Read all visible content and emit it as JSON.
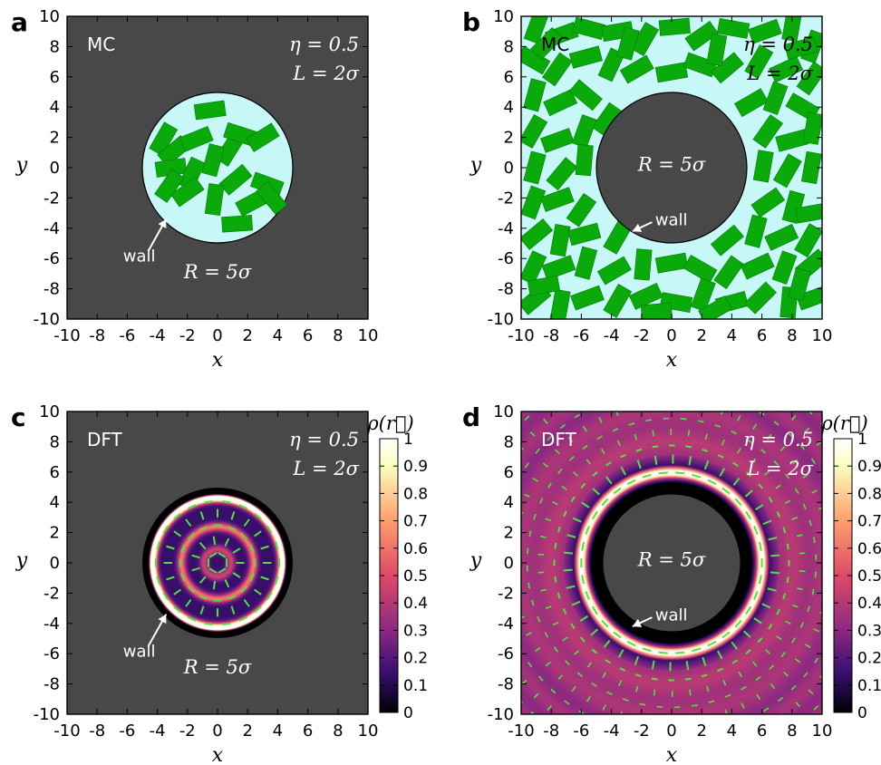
{
  "chart_data": [
    {
      "type": "heatmap",
      "panel": "a",
      "method": "MC",
      "params": [
        "η = 0.5",
        "L = 2σ"
      ],
      "radius_label": "R = 5σ",
      "wall_label": "wall",
      "xlabel": "x",
      "ylabel": "y",
      "xlim": [
        -10,
        10
      ],
      "ylim": [
        -10,
        10
      ],
      "ticks": [
        -10,
        -8,
        -6,
        -4,
        -2,
        0,
        2,
        4,
        6,
        8,
        10
      ],
      "confinement": "inside",
      "wall_radius": 5,
      "rod_length": 2,
      "rod_width": 1,
      "rods": [
        [
          -0.5,
          3.8,
          8
        ],
        [
          -3.6,
          1.9,
          60
        ],
        [
          -2.9,
          1.1,
          40
        ],
        [
          -1.4,
          1.9,
          22
        ],
        [
          0.8,
          1.2,
          58
        ],
        [
          1.5,
          2.2,
          -18
        ],
        [
          3.0,
          2.0,
          32
        ],
        [
          -3.1,
          0.0,
          8
        ],
        [
          -1.7,
          -0.4,
          65
        ],
        [
          -0.3,
          0.5,
          75
        ],
        [
          1.2,
          -0.8,
          40
        ],
        [
          3.3,
          -1.1,
          -20
        ],
        [
          -3.2,
          -1.2,
          55
        ],
        [
          -2.0,
          -1.6,
          35
        ],
        [
          -0.2,
          -2.1,
          82
        ],
        [
          2.3,
          -2.3,
          28
        ],
        [
          3.6,
          -2.0,
          -50
        ],
        [
          1.3,
          -3.7,
          4
        ]
      ]
    },
    {
      "type": "heatmap",
      "panel": "b",
      "method": "MC",
      "params": [
        "η = 0.5",
        "L = 2σ"
      ],
      "radius_label": "R = 5σ",
      "wall_label": "wall",
      "xlabel": "x",
      "ylabel": "y",
      "xlim": [
        -10,
        10
      ],
      "ylim": [
        -10,
        10
      ],
      "ticks": [
        -10,
        -8,
        -6,
        -4,
        -2,
        0,
        2,
        4,
        6,
        8,
        10
      ],
      "confinement": "outside",
      "wall_radius": 5,
      "rod_length": 2,
      "rod_width": 1,
      "rods": [
        [
          -9.0,
          9.3,
          70
        ],
        [
          -7.3,
          8.8,
          20
        ],
        [
          -5.5,
          9.2,
          -15
        ],
        [
          -3.6,
          9.0,
          10
        ],
        [
          -1.8,
          8.5,
          60
        ],
        [
          0.2,
          9.3,
          5
        ],
        [
          2.0,
          8.7,
          35
        ],
        [
          4.1,
          9.2,
          -10
        ],
        [
          6.2,
          9.0,
          20
        ],
        [
          8.0,
          9.4,
          80
        ],
        [
          9.4,
          8.0,
          70
        ],
        [
          -9.2,
          7.1,
          -30
        ],
        [
          -7.6,
          6.5,
          55
        ],
        [
          -5.7,
          7.3,
          15
        ],
        [
          -4.0,
          6.8,
          65
        ],
        [
          -2.3,
          6.5,
          30
        ],
        [
          0.0,
          6.3,
          10
        ],
        [
          1.9,
          6.8,
          -20
        ],
        [
          3.7,
          6.6,
          40
        ],
        [
          5.8,
          7.0,
          60
        ],
        [
          7.6,
          6.5,
          25
        ],
        [
          9.3,
          5.9,
          55
        ],
        [
          -9.1,
          4.8,
          75
        ],
        [
          -7.4,
          4.3,
          25
        ],
        [
          -5.7,
          4.8,
          -40
        ],
        [
          -4.3,
          3.2,
          55
        ],
        [
          5.3,
          4.3,
          30
        ],
        [
          6.9,
          4.6,
          70
        ],
        [
          8.7,
          4.0,
          -30
        ],
        [
          -9.2,
          2.4,
          60
        ],
        [
          -7.6,
          1.8,
          20
        ],
        [
          -5.8,
          2.4,
          70
        ],
        [
          6.4,
          2.4,
          55
        ],
        [
          8.0,
          1.8,
          15
        ],
        [
          9.4,
          2.6,
          80
        ],
        [
          -9.1,
          0.0,
          75
        ],
        [
          -7.3,
          -0.4,
          50
        ],
        [
          -5.8,
          0.5,
          85
        ],
        [
          6.1,
          0.1,
          80
        ],
        [
          7.7,
          -0.2,
          60
        ],
        [
          9.3,
          0.0,
          80
        ],
        [
          -9.2,
          -2.3,
          70
        ],
        [
          -7.6,
          -2.1,
          20
        ],
        [
          -6.0,
          -2.8,
          55
        ],
        [
          6.4,
          -2.3,
          35
        ],
        [
          8.1,
          -2.6,
          75
        ],
        [
          9.3,
          -3.0,
          10
        ],
        [
          -9.0,
          -4.4,
          40
        ],
        [
          -7.4,
          -4.8,
          80
        ],
        [
          -5.8,
          -4.4,
          15
        ],
        [
          -3.6,
          -4.6,
          60
        ],
        [
          3.7,
          -4.8,
          40
        ],
        [
          5.6,
          -4.2,
          75
        ],
        [
          7.3,
          -4.6,
          25
        ],
        [
          9.1,
          -4.8,
          60
        ],
        [
          -9.2,
          -6.6,
          65
        ],
        [
          -7.5,
          -6.6,
          20
        ],
        [
          -5.7,
          -6.3,
          75
        ],
        [
          -3.8,
          -6.8,
          30
        ],
        [
          -1.9,
          -6.4,
          85
        ],
        [
          0.0,
          -6.3,
          10
        ],
        [
          1.9,
          -6.7,
          -30
        ],
        [
          3.8,
          -6.9,
          55
        ],
        [
          5.7,
          -6.5,
          25
        ],
        [
          7.5,
          -6.6,
          70
        ],
        [
          9.3,
          -6.4,
          40
        ],
        [
          -9.1,
          -8.7,
          40
        ],
        [
          -7.4,
          -9.1,
          80
        ],
        [
          -5.6,
          -8.6,
          20
        ],
        [
          -3.6,
          -8.8,
          60
        ],
        [
          -1.7,
          -8.5,
          25
        ],
        [
          0.3,
          -8.9,
          -10
        ],
        [
          2.1,
          -8.4,
          70
        ],
        [
          4.0,
          -8.9,
          15
        ],
        [
          5.9,
          -8.6,
          45
        ],
        [
          7.8,
          -8.9,
          85
        ],
        [
          9.4,
          -8.6,
          20
        ],
        [
          -2.9,
          8.2,
          75
        ],
        [
          3.0,
          7.8,
          80
        ],
        [
          -8.3,
          8.2,
          45
        ],
        [
          8.6,
          7.9,
          15
        ],
        [
          -8.5,
          -7.8,
          10
        ],
        [
          8.5,
          -7.7,
          75
        ],
        [
          -1.0,
          -9.5,
          5
        ],
        [
          2.9,
          -9.4,
          30
        ]
      ]
    },
    {
      "type": "heatmap",
      "panel": "c",
      "method": "DFT",
      "params": [
        "η = 0.5",
        "L = 2σ"
      ],
      "radius_label": "R = 5σ",
      "wall_label": "wall",
      "xlabel": "x",
      "ylabel": "y",
      "xlim": [
        -10,
        10
      ],
      "ylim": [
        -10,
        10
      ],
      "ticks": [
        -10,
        -8,
        -6,
        -4,
        -2,
        0,
        2,
        4,
        6,
        8,
        10
      ],
      "confinement": "inside",
      "wall_radius": 5,
      "density_peaks": [
        {
          "r": 4.3,
          "rho": 1.0
        },
        {
          "r": 2.4,
          "rho": 0.48
        },
        {
          "r": 0.9,
          "rho": 0.32
        }
      ],
      "colorbar_label": "ρ(r⃗)",
      "colorbar_ticks": [
        0,
        0.1,
        0.2,
        0.3,
        0.4,
        0.5,
        0.6,
        0.7,
        0.8,
        0.9,
        1
      ],
      "colorbar_range": [
        0,
        1
      ]
    },
    {
      "type": "heatmap",
      "panel": "d",
      "method": "DFT",
      "params": [
        "η = 0.5",
        "L = 2σ"
      ],
      "radius_label": "R = 5σ",
      "wall_label": "wall",
      "xlabel": "x",
      "ylabel": "y",
      "xlim": [
        -10,
        10
      ],
      "ylim": [
        -10,
        10
      ],
      "ticks": [
        -10,
        -8,
        -6,
        -4,
        -2,
        0,
        2,
        4,
        6,
        8,
        10
      ],
      "confinement": "outside",
      "wall_radius": 5,
      "density_peaks": [
        {
          "r": 6.0,
          "rho": 1.0
        },
        {
          "r": 7.8,
          "rho": 0.45
        },
        {
          "r": 9.6,
          "rho": 0.36
        }
      ],
      "bulk_density": 0.33,
      "colorbar_label": "ρ(r⃗)",
      "colorbar_ticks": [
        0,
        0.1,
        0.2,
        0.3,
        0.4,
        0.5,
        0.6,
        0.7,
        0.8,
        0.9,
        1
      ],
      "colorbar_range": [
        0,
        1
      ]
    }
  ],
  "colors": {
    "excluded": "#484848",
    "fluid": "#c8f7f7",
    "rod": "#0aaa0a",
    "rod_edge": "#007a00",
    "director": "#50e040",
    "wall_ring": "#000000",
    "colormap": [
      "#000004",
      "#3b0f70",
      "#8c2981",
      "#de4968",
      "#fe9f6d",
      "#fcfdbf",
      "#ffffff"
    ]
  }
}
